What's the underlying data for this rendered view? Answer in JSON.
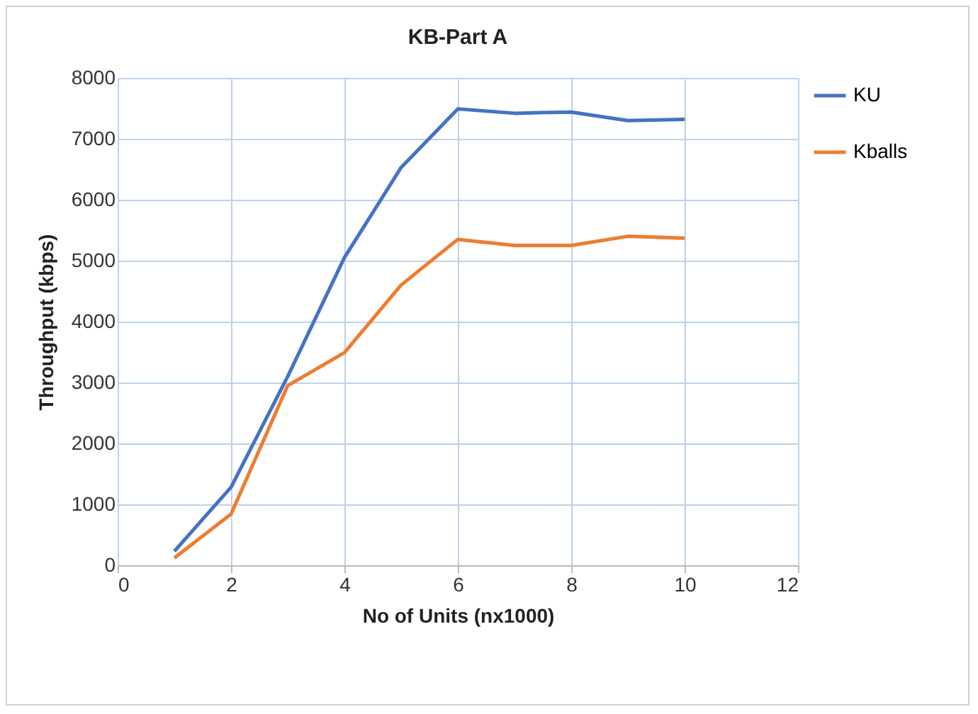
{
  "chart_data": {
    "type": "line",
    "title": "KB-Part  A",
    "xlabel": "No of Units (nx1000)",
    "ylabel": "Throughput  (kbps)",
    "x": [
      1,
      2,
      3,
      4,
      5,
      6,
      7,
      8,
      9,
      10
    ],
    "series": [
      {
        "name": "KU",
        "color": "#4472c4",
        "values": [
          230,
          1280,
          3100,
          5050,
          6530,
          7490,
          7420,
          7440,
          7300,
          7320
        ]
      },
      {
        "name": "Kballs",
        "color": "#ed7d31",
        "values": [
          120,
          840,
          2950,
          3490,
          4600,
          5350,
          5250,
          5250,
          5400,
          5370
        ]
      }
    ],
    "xlim": [
      0,
      12
    ],
    "xticks": [
      0,
      2,
      4,
      6,
      8,
      10,
      12
    ],
    "ylim": [
      0,
      8000
    ],
    "yticks": [
      0,
      1000,
      2000,
      3000,
      4000,
      5000,
      6000,
      7000,
      8000
    ],
    "grid": true,
    "legend": "right",
    "marker": "none",
    "line_style": "solid"
  }
}
